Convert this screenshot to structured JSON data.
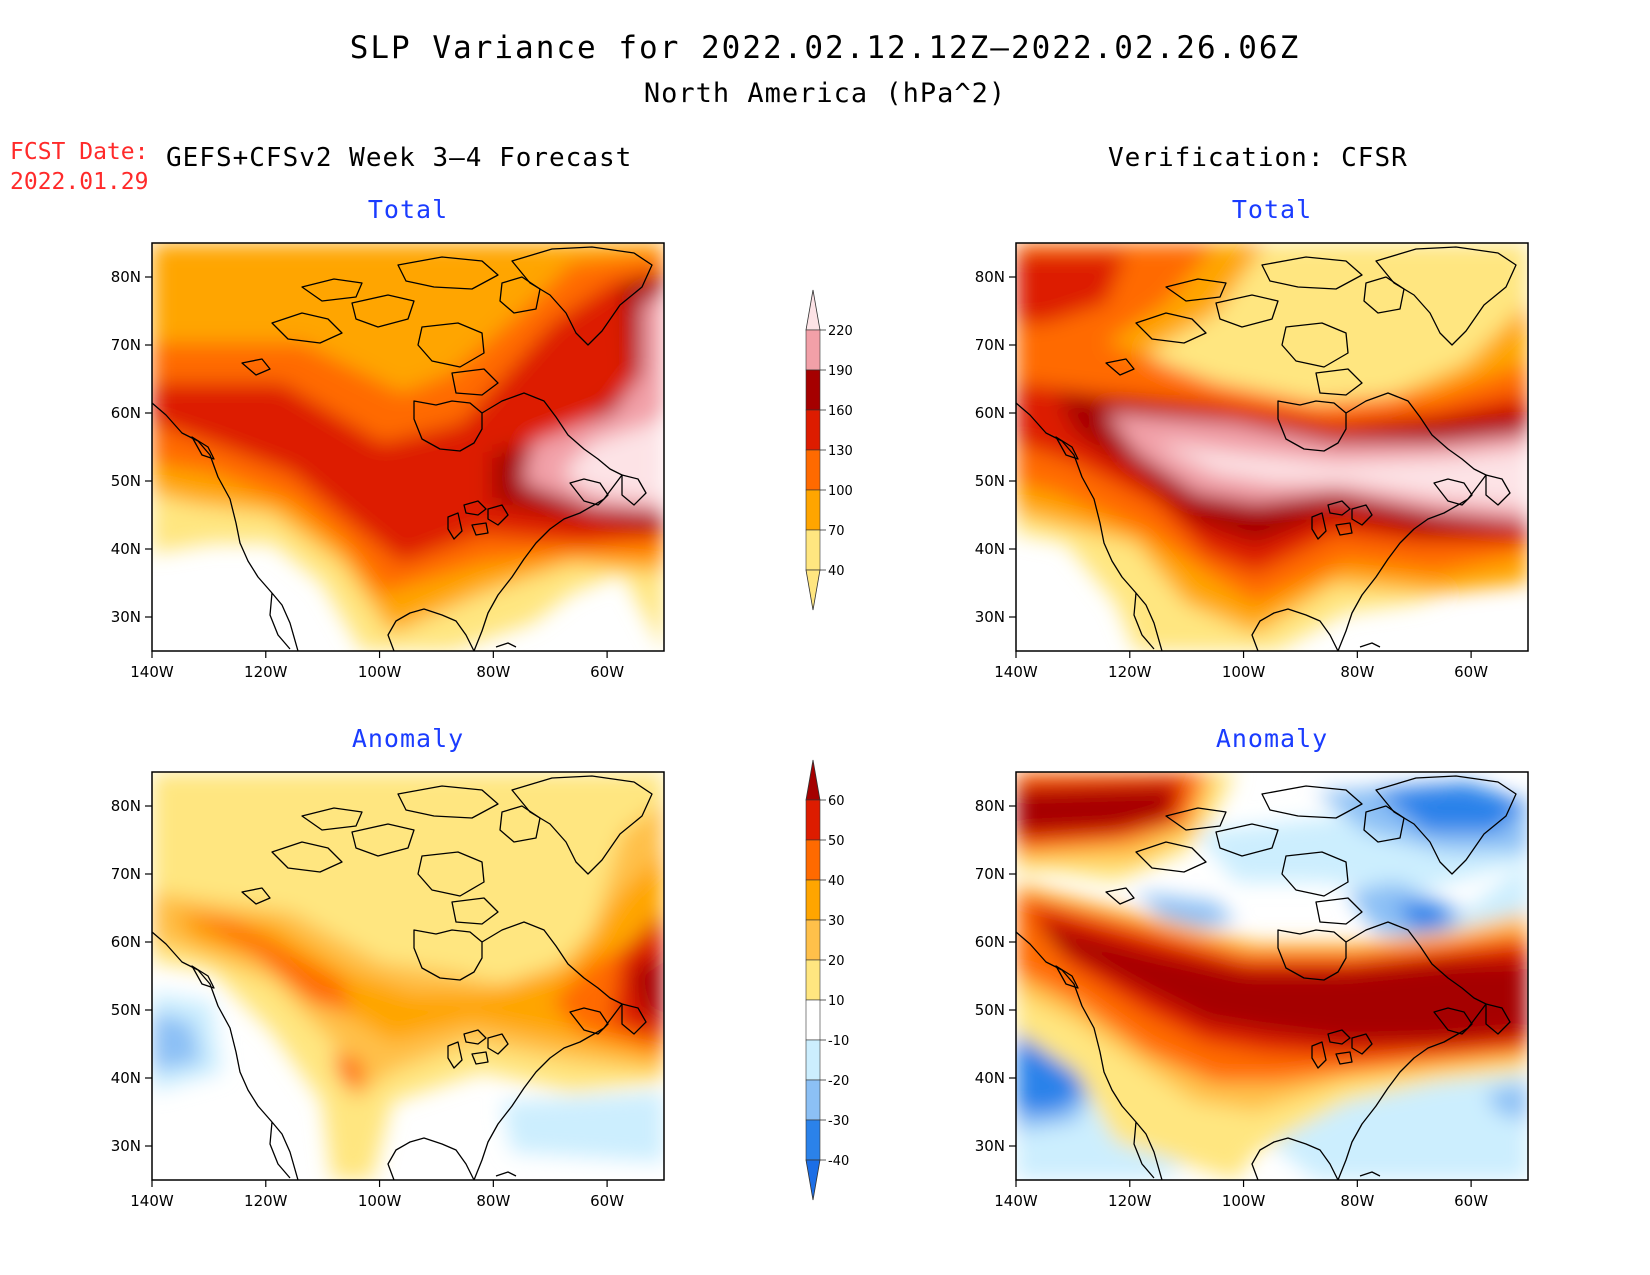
{
  "header": {
    "title": "SLP Variance for 2022.02.12.12Z–2022.02.26.06Z",
    "subtitle": "North America (hPa^2)",
    "fcst_label": "FCST Date:",
    "fcst_date": "2022.01.29",
    "left_column_title": "GEFS+CFSv2 Week 3–4 Forecast",
    "right_column_title": "Verification: CFSR"
  },
  "panel_titles": {
    "total": "Total",
    "anomaly": "Anomaly"
  },
  "axes": {
    "lon_ticks": [
      "140W",
      "120W",
      "100W",
      "80W",
      "60W"
    ],
    "lat_ticks": [
      "80N",
      "70N",
      "60N",
      "50N",
      "40N",
      "30N"
    ]
  },
  "colorbars": {
    "total": {
      "levels": [
        "40",
        "70",
        "100",
        "130",
        "160",
        "190",
        "220"
      ],
      "colors": [
        "#ffe680",
        "#ffa500",
        "#ff6a00",
        "#dd1c00",
        "#a50000",
        "#f2a0a8",
        "#fde3e6"
      ]
    },
    "anomaly": {
      "levels": [
        "-40",
        "-30",
        "-20",
        "-10",
        "10",
        "20",
        "30",
        "40",
        "50",
        "60"
      ],
      "colors": [
        "#1c6ee6",
        "#2b82ea",
        "#8cc0f5",
        "#cceefe",
        "#ffffff",
        "#ffe680",
        "#ffc04a",
        "#ffa500",
        "#ff6a00",
        "#dd1c00",
        "#a50000"
      ]
    }
  },
  "palette": {
    "title_red": "#ff2a2a",
    "panel_title_blue": "#1a3cff"
  }
}
